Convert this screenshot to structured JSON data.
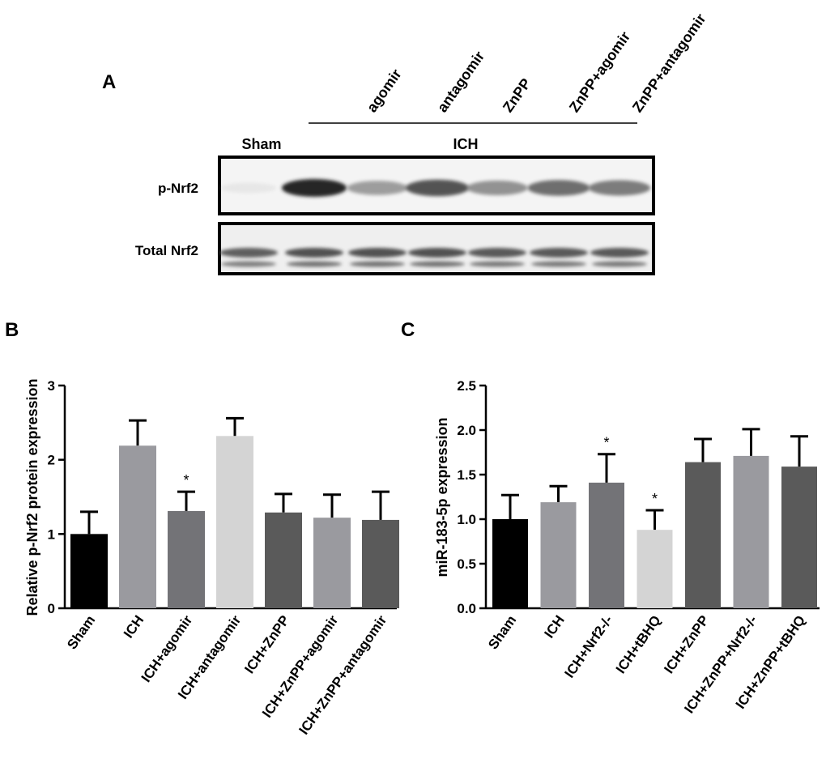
{
  "panels": {
    "a": "A",
    "b": "B",
    "c": "C"
  },
  "blot": {
    "column_labels": [
      "agomir",
      "antagomir",
      "ZnPP",
      "ZnPP+agomir",
      "ZnPP+antagomir"
    ],
    "sham_label": "Sham",
    "ich_label": "ICH",
    "row_labels": [
      "p-Nrf2",
      "Total Nrf2"
    ],
    "p_nrf2_band_intensity": [
      0.05,
      1.0,
      0.55,
      0.85,
      0.6,
      0.75,
      0.7
    ],
    "total_nrf2_band_intensity": [
      0.75,
      0.85,
      0.85,
      0.85,
      0.8,
      0.8,
      0.8
    ]
  },
  "chart_data": [
    {
      "type": "bar",
      "ylabel": "Relative p-Nrf2 protein expression",
      "ylim": [
        0,
        3
      ],
      "yticks": [
        "0",
        "1",
        "2",
        "3"
      ],
      "categories": [
        "Sham",
        "ICH",
        "ICH+agomir",
        "ICH+antagomir",
        "ICH+ZnPP",
        "ICH+ZnPP+agomir",
        "ICH+ZnPP+antagomir"
      ],
      "values": [
        1.0,
        2.19,
        1.31,
        2.32,
        1.29,
        1.22,
        1.19
      ],
      "errors": [
        0.3,
        0.34,
        0.26,
        0.24,
        0.25,
        0.31,
        0.38
      ],
      "significance": [
        "",
        "",
        "*",
        "",
        "",
        "",
        ""
      ],
      "colors": [
        "#000000",
        "#9a9a9f",
        "#737377",
        "#d4d4d4",
        "#5a5a5a",
        "#9a9a9f",
        "#5a5a5a"
      ]
    },
    {
      "type": "bar",
      "ylabel": "miR-183-5p expression",
      "ylim": [
        0,
        2.5
      ],
      "yticks": [
        "0.0",
        "0.5",
        "1.0",
        "1.5",
        "2.0",
        "2.5"
      ],
      "categories": [
        "Sham",
        "ICH",
        "ICH+Nrf2-/-",
        "ICH+tBHQ",
        "ICH+ZnPP",
        "ICH+ZnPP+Nrf2-/-",
        "ICH+ZnPP+tBHQ"
      ],
      "values": [
        1.0,
        1.19,
        1.41,
        0.88,
        1.64,
        1.71,
        1.59
      ],
      "errors": [
        0.27,
        0.18,
        0.32,
        0.22,
        0.26,
        0.3,
        0.34
      ],
      "significance": [
        "",
        "",
        "*",
        "*",
        "",
        "",
        ""
      ],
      "colors": [
        "#000000",
        "#9a9a9f",
        "#737377",
        "#d4d4d4",
        "#5a5a5a",
        "#9a9a9f",
        "#5a5a5a"
      ]
    }
  ]
}
